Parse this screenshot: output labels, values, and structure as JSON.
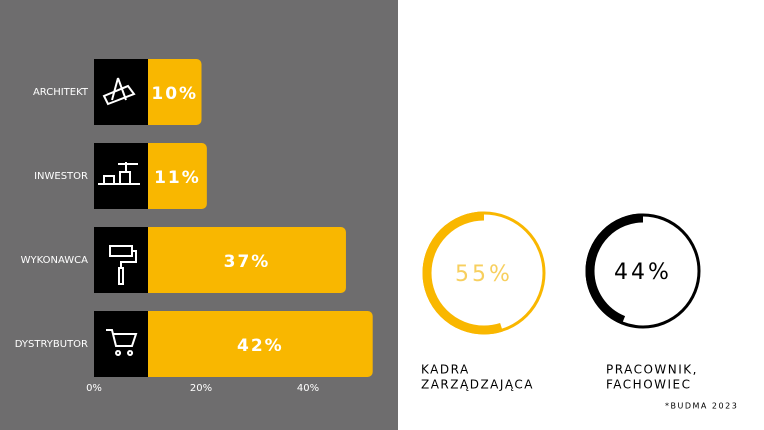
{
  "chart_data": [
    {
      "type": "bar",
      "orientation": "horizontal",
      "categories": [
        "ARCHITEKT",
        "INWESTOR",
        "WYKONAWCA",
        "DYSTRYBUTOR"
      ],
      "values": [
        10,
        11,
        37,
        42
      ],
      "value_labels": [
        "10%",
        "11%",
        "37%",
        "42%"
      ],
      "color": "#f9b700",
      "xlim": [
        0,
        50
      ],
      "xticks": [
        {
          "value": 0,
          "label": "0%"
        },
        {
          "value": 20,
          "label": "20%"
        },
        {
          "value": 40,
          "label": "40%"
        }
      ]
    },
    {
      "type": "donut",
      "value": 55,
      "value_label": "55%",
      "label": [
        "KADRA",
        "ZARZĄDZAJĄCA"
      ],
      "color": "#f9b700",
      "text_color": "#f7cf5e"
    },
    {
      "type": "donut",
      "value": 44,
      "value_label": "44%",
      "label": [
        "PRACOWNIK,",
        "FACHOWIEC"
      ],
      "color": "#000000",
      "text_color": "#000000"
    }
  ],
  "note": "*BUDMA 2023"
}
